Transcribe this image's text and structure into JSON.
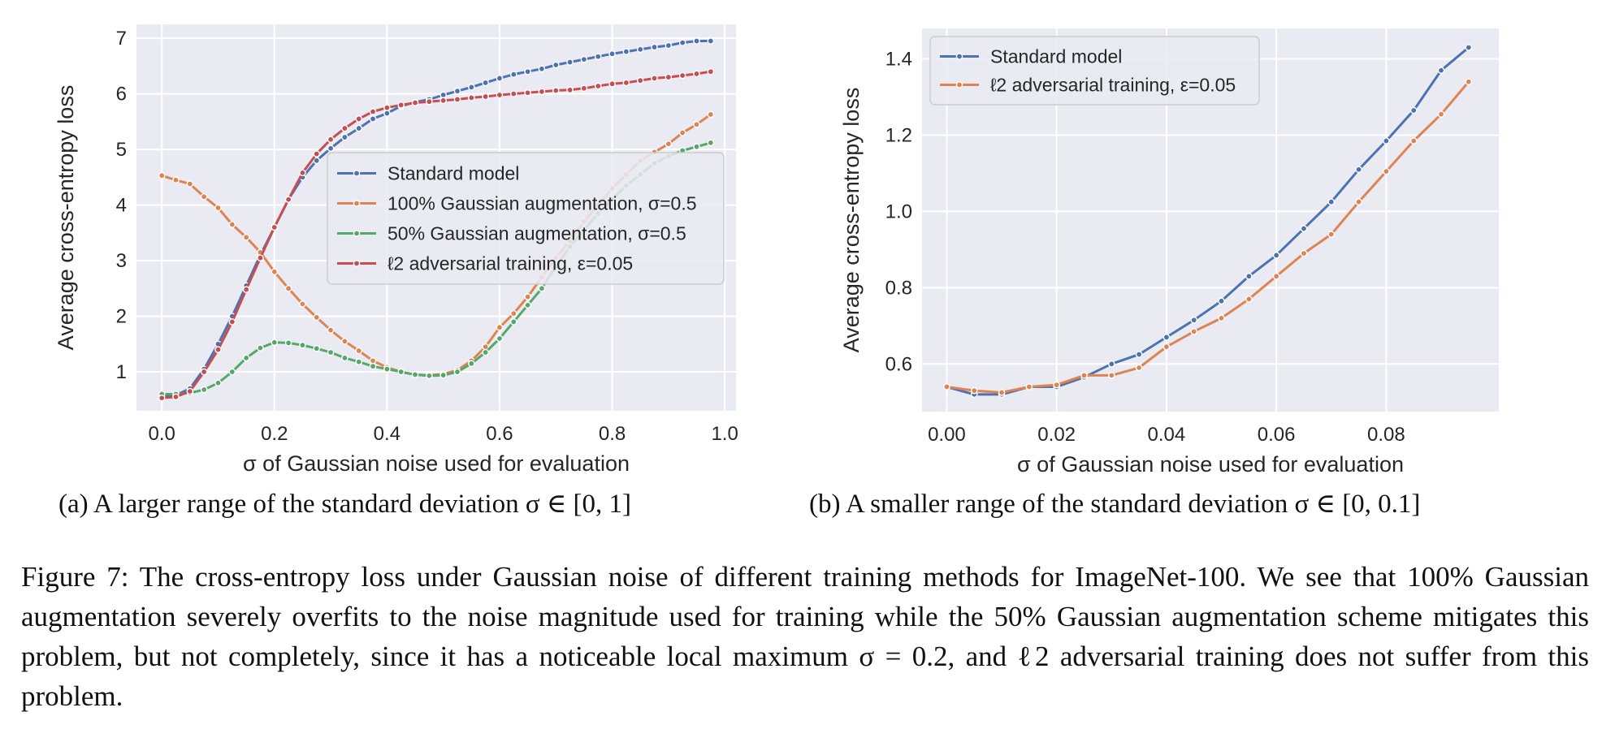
{
  "captions": {
    "a": "(a) A larger range of the standard deviation σ ∈ [0, 1]",
    "b": "(b) A smaller range of the standard deviation σ ∈ [0, 0.1]",
    "figure": "Figure 7: The cross-entropy loss under Gaussian noise of different training methods for ImageNet-100. We see that 100% Gaussian augmentation severely overfits to the noise magnitude used for training while the 50% Gaussian augmentation scheme mitigates this problem, but not completely, since it has a noticeable local maximum σ = 0.2, and ℓ2 adversarial training does not suffer from this problem."
  },
  "chart_data": [
    {
      "type": "line",
      "title": "",
      "xlabel": "σ of Gaussian noise used for evaluation",
      "ylabel": "Average cross-entropy loss",
      "xlim": [
        -0.045,
        1.02
      ],
      "ylim": [
        0.3,
        7.25
      ],
      "xticks": [
        0.0,
        0.2,
        0.4,
        0.6,
        0.8,
        1.0
      ],
      "xtick_labels": [
        "0.0",
        "0.2",
        "0.4",
        "0.6",
        "0.8",
        "1.0"
      ],
      "yticks": [
        1,
        2,
        3,
        4,
        5,
        6,
        7
      ],
      "ytick_labels": [
        "1",
        "2",
        "3",
        "4",
        "5",
        "6",
        "7"
      ],
      "legend_position": "center-right",
      "series": [
        {
          "name": "Standard model",
          "color": "#4c72b0",
          "x": [
            0.0,
            0.025,
            0.05,
            0.075,
            0.1,
            0.125,
            0.15,
            0.175,
            0.2,
            0.225,
            0.25,
            0.275,
            0.3,
            0.325,
            0.35,
            0.375,
            0.4,
            0.425,
            0.45,
            0.475,
            0.5,
            0.525,
            0.55,
            0.575,
            0.6,
            0.625,
            0.65,
            0.675,
            0.7,
            0.725,
            0.75,
            0.775,
            0.8,
            0.825,
            0.85,
            0.875,
            0.9,
            0.925,
            0.95,
            0.975
          ],
          "y": [
            0.55,
            0.58,
            0.7,
            1.05,
            1.5,
            2.0,
            2.55,
            3.1,
            3.6,
            4.1,
            4.5,
            4.8,
            5.02,
            5.22,
            5.38,
            5.55,
            5.65,
            5.78,
            5.85,
            5.9,
            5.98,
            6.05,
            6.12,
            6.2,
            6.28,
            6.35,
            6.4,
            6.45,
            6.52,
            6.57,
            6.62,
            6.67,
            6.72,
            6.76,
            6.8,
            6.84,
            6.87,
            6.92,
            6.95,
            6.95
          ]
        },
        {
          "name": "100% Gaussian augmentation, σ=0.5",
          "color": "#dd8452",
          "x": [
            0.0,
            0.025,
            0.05,
            0.075,
            0.1,
            0.125,
            0.15,
            0.175,
            0.2,
            0.225,
            0.25,
            0.275,
            0.3,
            0.325,
            0.35,
            0.375,
            0.4,
            0.425,
            0.45,
            0.475,
            0.5,
            0.525,
            0.55,
            0.575,
            0.6,
            0.625,
            0.65,
            0.675,
            0.7,
            0.725,
            0.75,
            0.775,
            0.8,
            0.825,
            0.85,
            0.875,
            0.9,
            0.925,
            0.95,
            0.975
          ],
          "y": [
            4.53,
            4.45,
            4.38,
            4.15,
            3.95,
            3.65,
            3.42,
            3.15,
            2.8,
            2.5,
            2.22,
            1.98,
            1.75,
            1.55,
            1.38,
            1.2,
            1.08,
            1.0,
            0.95,
            0.94,
            0.96,
            1.03,
            1.2,
            1.45,
            1.8,
            2.05,
            2.35,
            2.7,
            3.05,
            3.35,
            3.7,
            4.0,
            4.3,
            4.55,
            4.8,
            4.95,
            5.1,
            5.3,
            5.45,
            5.63
          ]
        },
        {
          "name": "50% Gaussian augmentation, σ=0.5",
          "color": "#55a868",
          "x": [
            0.0,
            0.025,
            0.05,
            0.075,
            0.1,
            0.125,
            0.15,
            0.175,
            0.2,
            0.225,
            0.25,
            0.275,
            0.3,
            0.325,
            0.35,
            0.375,
            0.4,
            0.425,
            0.45,
            0.475,
            0.5,
            0.525,
            0.55,
            0.575,
            0.6,
            0.625,
            0.65,
            0.675,
            0.7,
            0.725,
            0.75,
            0.775,
            0.8,
            0.825,
            0.85,
            0.875,
            0.9,
            0.925,
            0.95,
            0.975
          ],
          "y": [
            0.6,
            0.6,
            0.62,
            0.68,
            0.8,
            1.0,
            1.25,
            1.43,
            1.53,
            1.52,
            1.48,
            1.42,
            1.35,
            1.25,
            1.18,
            1.1,
            1.05,
            1.0,
            0.95,
            0.93,
            0.94,
            1.0,
            1.15,
            1.35,
            1.6,
            1.9,
            2.2,
            2.5,
            2.9,
            3.25,
            3.55,
            3.85,
            4.1,
            4.35,
            4.55,
            4.75,
            4.88,
            4.98,
            5.05,
            5.12
          ]
        },
        {
          "name": "ℓ2 adversarial training, ε=0.05",
          "color": "#c44e52",
          "x": [
            0.0,
            0.025,
            0.05,
            0.075,
            0.1,
            0.125,
            0.15,
            0.175,
            0.2,
            0.225,
            0.25,
            0.275,
            0.3,
            0.325,
            0.35,
            0.375,
            0.4,
            0.425,
            0.45,
            0.475,
            0.5,
            0.525,
            0.55,
            0.575,
            0.6,
            0.625,
            0.65,
            0.675,
            0.7,
            0.725,
            0.75,
            0.775,
            0.8,
            0.825,
            0.85,
            0.875,
            0.9,
            0.925,
            0.95,
            0.975
          ],
          "y": [
            0.53,
            0.55,
            0.65,
            1.0,
            1.4,
            1.9,
            2.48,
            3.05,
            3.6,
            4.1,
            4.58,
            4.92,
            5.18,
            5.38,
            5.55,
            5.68,
            5.75,
            5.8,
            5.84,
            5.86,
            5.88,
            5.9,
            5.93,
            5.95,
            5.98,
            6.0,
            6.02,
            6.04,
            6.06,
            6.07,
            6.1,
            6.14,
            6.18,
            6.2,
            6.24,
            6.28,
            6.3,
            6.33,
            6.36,
            6.4
          ]
        }
      ]
    },
    {
      "type": "line",
      "title": "",
      "xlabel": "σ of Gaussian noise used for evaluation",
      "ylabel": "Average cross-entropy loss",
      "xlim": [
        -0.0045,
        0.1005
      ],
      "ylim": [
        0.475,
        1.48
      ],
      "xticks": [
        0.0,
        0.02,
        0.04,
        0.06,
        0.08
      ],
      "xtick_labels": [
        "0.00",
        "0.02",
        "0.04",
        "0.06",
        "0.08"
      ],
      "yticks": [
        0.6,
        0.8,
        1.0,
        1.2,
        1.4
      ],
      "ytick_labels": [
        "0.6",
        "0.8",
        "1.0",
        "1.2",
        "1.4"
      ],
      "legend_position": "upper-left",
      "series": [
        {
          "name": "Standard model",
          "color": "#4c72b0",
          "x": [
            0.0,
            0.005,
            0.01,
            0.015,
            0.02,
            0.025,
            0.03,
            0.035,
            0.04,
            0.045,
            0.05,
            0.055,
            0.06,
            0.065,
            0.07,
            0.075,
            0.08,
            0.085,
            0.09,
            0.095
          ],
          "y": [
            0.54,
            0.52,
            0.52,
            0.54,
            0.54,
            0.565,
            0.6,
            0.625,
            0.67,
            0.715,
            0.765,
            0.83,
            0.885,
            0.955,
            1.025,
            1.11,
            1.185,
            1.265,
            1.37,
            1.43
          ]
        },
        {
          "name": "ℓ2 adversarial training, ε=0.05",
          "color": "#dd8452",
          "x": [
            0.0,
            0.005,
            0.01,
            0.015,
            0.02,
            0.025,
            0.03,
            0.035,
            0.04,
            0.045,
            0.05,
            0.055,
            0.06,
            0.065,
            0.07,
            0.075,
            0.08,
            0.085,
            0.09,
            0.095
          ],
          "y": [
            0.54,
            0.53,
            0.525,
            0.54,
            0.545,
            0.57,
            0.57,
            0.59,
            0.645,
            0.685,
            0.72,
            0.77,
            0.83,
            0.89,
            0.94,
            1.025,
            1.105,
            1.185,
            1.255,
            1.34
          ]
        }
      ]
    }
  ]
}
